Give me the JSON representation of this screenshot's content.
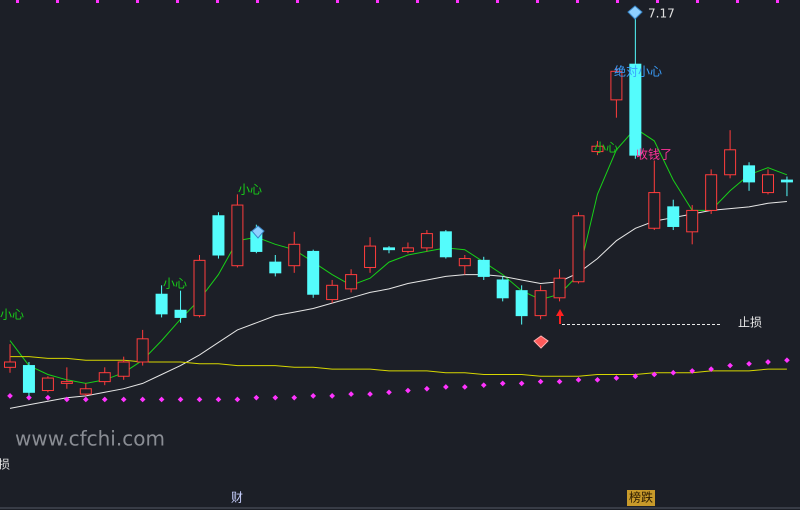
{
  "chart_data": {
    "type": "candlestick",
    "ylim": [
      4.38,
      7.24
    ],
    "up_color": "#ff3c3c",
    "down_color": "#54fcfc",
    "categories": [
      null,
      null,
      null,
      null,
      null,
      null,
      null,
      null,
      null,
      null,
      null,
      null,
      null,
      null,
      null,
      null,
      null,
      null,
      null,
      null,
      null,
      null,
      null,
      null,
      null,
      null,
      null,
      null,
      null,
      null,
      null,
      null,
      null,
      null,
      null,
      null,
      null,
      null,
      null,
      null,
      null,
      null
    ],
    "open": [
      5.18,
      5.19,
      5.05,
      5.09,
      5.03,
      5.1,
      5.13,
      5.21,
      5.59,
      5.5,
      5.47,
      6.03,
      5.75,
      5.94,
      5.77,
      5.75,
      5.83,
      5.56,
      5.62,
      5.74,
      5.85,
      5.83,
      5.85,
      5.94,
      5.75,
      5.78,
      5.67,
      5.61,
      5.47,
      5.57,
      5.66,
      6.39,
      6.68,
      6.88,
      5.96,
      6.08,
      5.94,
      6.06,
      6.26,
      6.31,
      6.16,
      6.23
    ],
    "high": [
      5.31,
      5.21,
      5.13,
      5.18,
      5.09,
      5.18,
      5.24,
      5.39,
      5.64,
      5.61,
      5.81,
      6.05,
      6.15,
      5.98,
      5.81,
      5.94,
      5.84,
      5.67,
      5.73,
      5.91,
      5.86,
      5.88,
      5.95,
      5.95,
      5.81,
      5.8,
      5.69,
      5.64,
      5.64,
      5.73,
      6.05,
      6.45,
      6.86,
      7.17,
      6.34,
      6.12,
      6.09,
      6.29,
      6.51,
      6.33,
      6.29,
      6.25
    ],
    "low": [
      5.15,
      5.02,
      5.04,
      5.06,
      5.02,
      5.08,
      5.11,
      5.19,
      5.46,
      5.43,
      5.46,
      5.79,
      5.74,
      5.82,
      5.69,
      5.71,
      5.57,
      5.54,
      5.6,
      5.71,
      5.82,
      5.82,
      5.83,
      5.79,
      5.7,
      5.67,
      5.55,
      5.42,
      5.45,
      5.55,
      5.65,
      6.37,
      6.58,
      6.35,
      5.95,
      5.95,
      5.87,
      6.04,
      6.24,
      6.17,
      6.15,
      6.14
    ],
    "close": [
      5.21,
      5.04,
      5.12,
      5.1,
      5.06,
      5.15,
      5.21,
      5.34,
      5.48,
      5.46,
      5.78,
      5.81,
      6.09,
      5.83,
      5.71,
      5.87,
      5.59,
      5.64,
      5.7,
      5.86,
      5.84,
      5.85,
      5.93,
      5.8,
      5.79,
      5.69,
      5.57,
      5.47,
      5.61,
      5.68,
      6.03,
      6.42,
      6.84,
      6.37,
      6.16,
      5.97,
      6.06,
      6.26,
      6.4,
      6.22,
      6.26,
      6.22
    ],
    "lines": [
      {
        "color": "#18d018",
        "values": [
          5.33,
          5.19,
          5.14,
          5.11,
          5.09,
          5.11,
          5.15,
          5.22,
          5.33,
          5.45,
          5.56,
          5.7,
          5.89,
          5.91,
          5.87,
          5.84,
          5.77,
          5.7,
          5.64,
          5.68,
          5.77,
          5.81,
          5.83,
          5.85,
          5.84,
          5.77,
          5.7,
          5.61,
          5.56,
          5.59,
          5.7,
          6.15,
          6.4,
          6.52,
          6.45,
          6.23,
          6.06,
          6.06,
          6.17,
          6.26,
          6.3,
          6.26
        ]
      },
      {
        "color": "#e6e6e6",
        "values": [
          4.95,
          4.97,
          4.99,
          5.01,
          5.02,
          5.04,
          5.06,
          5.09,
          5.14,
          5.19,
          5.25,
          5.32,
          5.39,
          5.43,
          5.47,
          5.49,
          5.51,
          5.54,
          5.57,
          5.6,
          5.62,
          5.65,
          5.67,
          5.69,
          5.7,
          5.7,
          5.69,
          5.67,
          5.65,
          5.66,
          5.71,
          5.79,
          5.89,
          5.96,
          6.0,
          6.02,
          6.04,
          6.06,
          6.07,
          6.08,
          6.1,
          6.11
        ]
      },
      {
        "color": "#d6d600",
        "values": [
          5.24,
          5.24,
          5.23,
          5.23,
          5.22,
          5.22,
          5.22,
          5.21,
          5.21,
          5.21,
          5.2,
          5.2,
          5.19,
          5.19,
          5.19,
          5.18,
          5.18,
          5.17,
          5.17,
          5.17,
          5.16,
          5.16,
          5.16,
          5.15,
          5.15,
          5.14,
          5.14,
          5.14,
          5.13,
          5.13,
          5.13,
          5.14,
          5.14,
          5.14,
          5.15,
          5.15,
          5.15,
          5.16,
          5.16,
          5.16,
          5.17,
          5.17
        ]
      }
    ],
    "dots": {
      "color": "#ff33ff",
      "values": [
        5.02,
        5.01,
        5.01,
        5.0,
        5.0,
        5.0,
        5.0,
        5.0,
        5.0,
        5.0,
        5.0,
        5.0,
        5.0,
        5.01,
        5.01,
        5.01,
        5.02,
        5.02,
        5.03,
        5.03,
        5.04,
        5.05,
        5.06,
        5.07,
        5.07,
        5.08,
        5.09,
        5.09,
        5.1,
        5.1,
        5.11,
        5.11,
        5.12,
        5.13,
        5.14,
        5.15,
        5.16,
        5.17,
        5.19,
        5.2,
        5.21,
        5.22
      ]
    },
    "stop_loss": {
      "label": "止损",
      "value": 5.42
    },
    "annotations": [
      "小心",
      "小心",
      "小心",
      "小心",
      "绝对小心",
      "收钱了"
    ],
    "watermark": "www.cfchi.com",
    "edge_text": "损",
    "bottom_labels": [
      "财",
      "榜跌"
    ]
  }
}
